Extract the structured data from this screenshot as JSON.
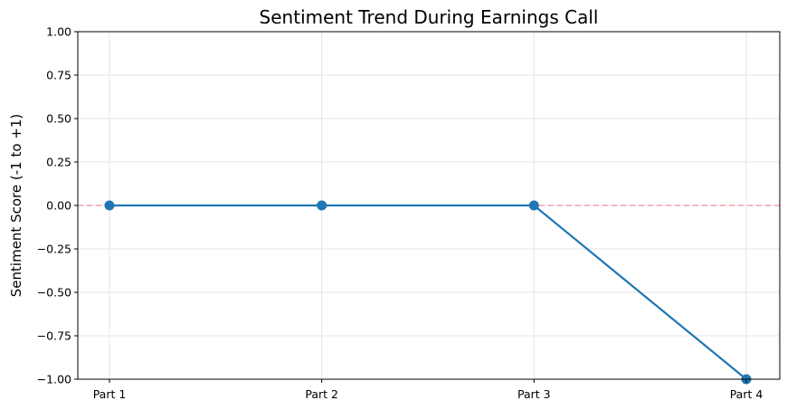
{
  "chart_data": {
    "type": "line",
    "title": "Sentiment Trend During Earnings Call",
    "xlabel": "",
    "ylabel": "Sentiment Score (-1 to +1)",
    "categories": [
      "Part 1",
      "Part 2",
      "Part 3",
      "Part 4"
    ],
    "series": [
      {
        "values": [
          0,
          0,
          0,
          -1
        ],
        "color": "#1f77b4",
        "marker": "circle"
      }
    ],
    "ylim": [
      -1,
      1
    ],
    "yticks": [
      1.0,
      0.75,
      0.5,
      0.25,
      0.0,
      -0.25,
      -0.5,
      -0.75,
      -1.0
    ],
    "ytick_labels": [
      "1.00",
      "0.75",
      "0.50",
      "0.25",
      "0.00",
      "−0.25",
      "−0.50",
      "−0.75",
      "−1.00"
    ],
    "reference_line": {
      "y": 0,
      "color": "#f4a0aa",
      "style": "dashed"
    },
    "grid": true
  }
}
